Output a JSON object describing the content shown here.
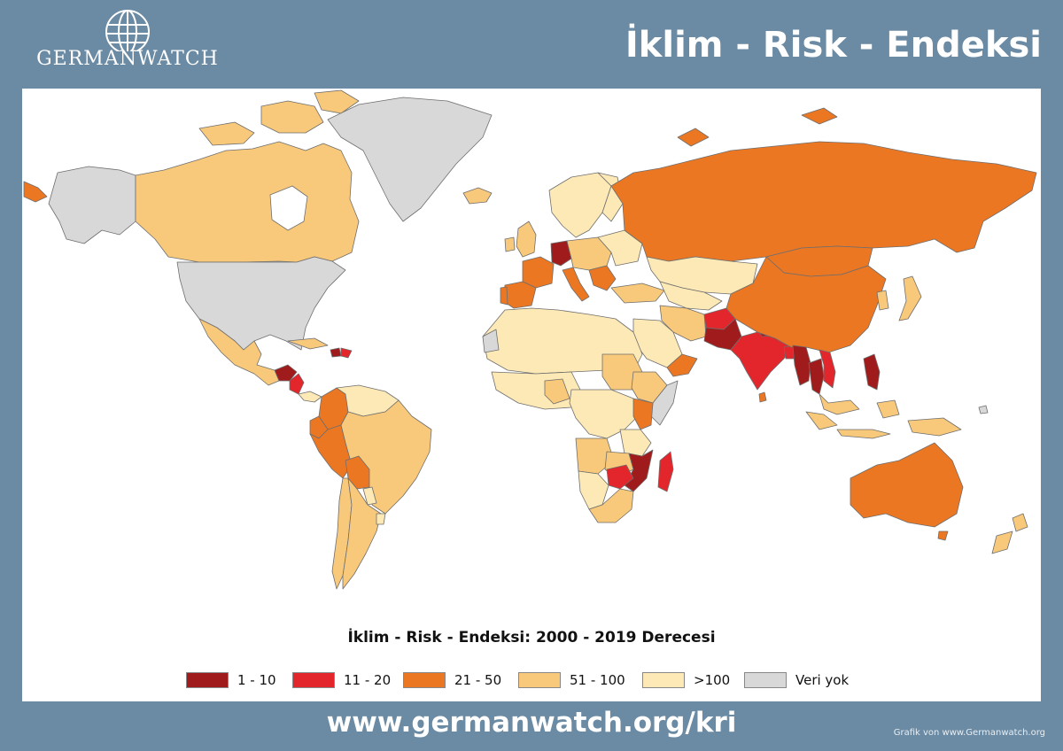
{
  "header": {
    "logo_text": "GERMANWATCH",
    "title": "İklim - Risk - Endeksi"
  },
  "map": {
    "subtitle": "İklim - Risk - Endeksi: 2000 - 2019 Derecesi",
    "legend": [
      {
        "label": "1 - 10",
        "color": "#a01c1c"
      },
      {
        "label": "11 - 20",
        "color": "#e3262b"
      },
      {
        "label": "21 - 50",
        "color": "#ec7723"
      },
      {
        "label": "51 - 100",
        "color": "#f8c97a"
      },
      {
        "label": ">100",
        "color": "#fde9b5"
      },
      {
        "label": "Veri yok",
        "color": "#d8d8d8"
      }
    ]
  },
  "footer": {
    "url": "www.germanwatch.org/kri",
    "credit": "Grafik von www.Germanwatch.org"
  }
}
